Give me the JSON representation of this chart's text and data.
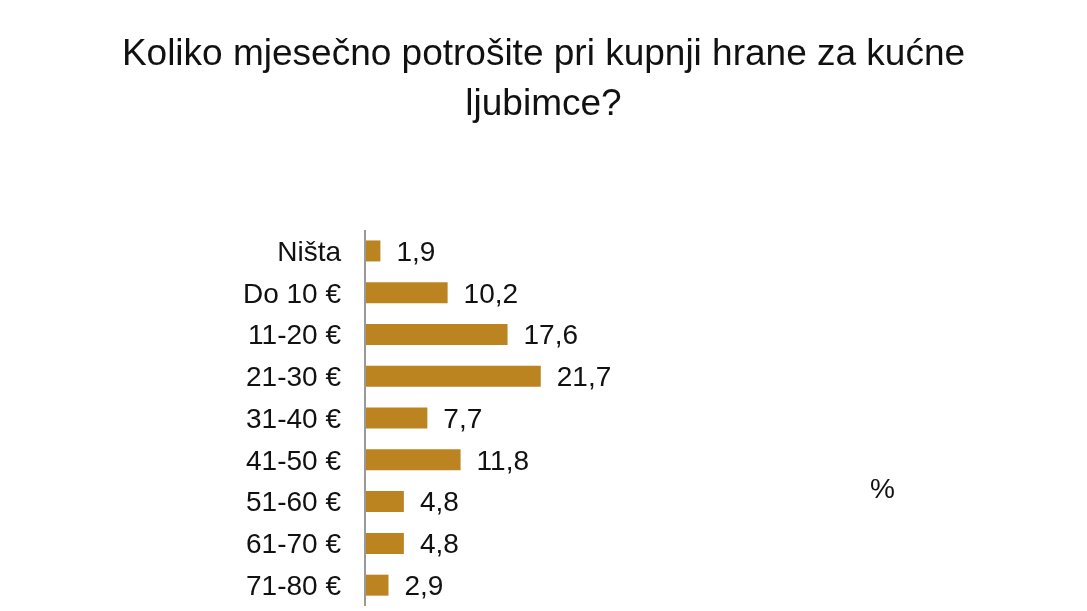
{
  "chart_data": {
    "type": "bar",
    "orientation": "horizontal",
    "title": "Koliko mjesečno potrošite pri kupnji hrane za kućne ljubimce?",
    "categories": [
      "Ništa",
      "Do 10 €",
      "11-20 €",
      "21-30 €",
      "31-40 €",
      "41-50 €",
      "51-60 €",
      "61-70 €",
      "71-80 €"
    ],
    "values": [
      1.9,
      10.2,
      17.6,
      21.7,
      7.7,
      11.8,
      4.8,
      4.8,
      2.9
    ],
    "value_labels": [
      "1,9",
      "10,2",
      "17,6",
      "21,7",
      "7,7",
      "11,8",
      "4,8",
      "4,8",
      "2,9"
    ],
    "color": "#bc8420",
    "tick_labels": "y",
    "annotations": [
      "%"
    ]
  }
}
